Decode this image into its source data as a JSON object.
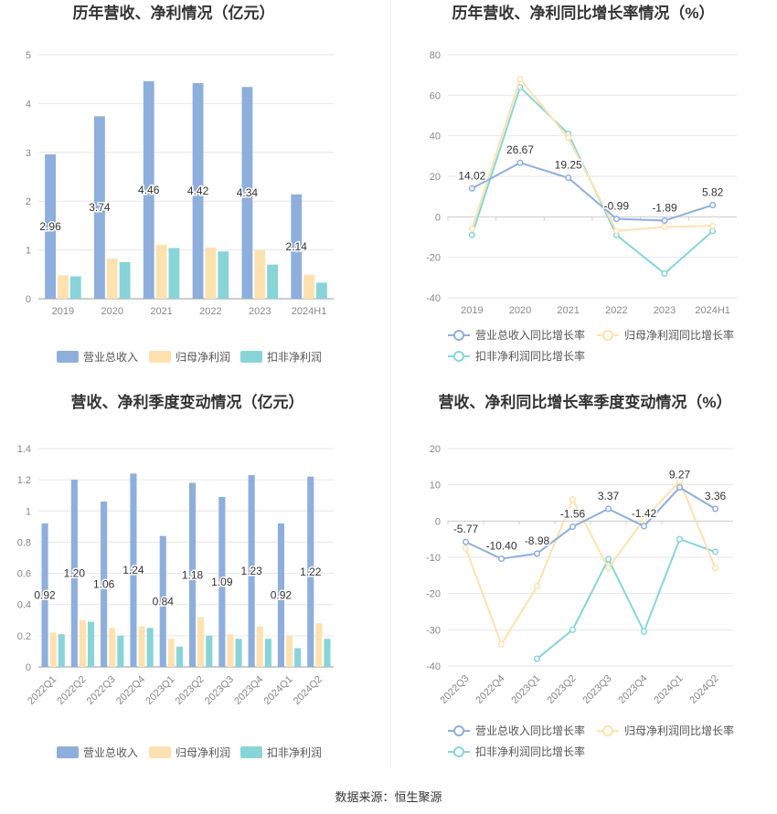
{
  "source_text": "数据来源：恒生聚源",
  "colors": {
    "revenue": "#8eaedc",
    "net_profit": "#fde2b0",
    "deducted_profit": "#88d4d8",
    "grid": "#e6e6e6",
    "axis_text": "#888888",
    "title": "#333333"
  },
  "chart_data": [
    {
      "type": "bar",
      "title": "历年营收、净利情况（亿元）",
      "categories": [
        "2019",
        "2020",
        "2021",
        "2022",
        "2023",
        "2024H1"
      ],
      "ylim": [
        0,
        5
      ],
      "yticks": [
        "0",
        "1",
        "2",
        "3",
        "4",
        "5"
      ],
      "series": [
        {
          "name": "营业总收入",
          "values": [
            2.96,
            3.74,
            4.46,
            4.42,
            4.34,
            2.14
          ]
        },
        {
          "name": "归母净利润",
          "values": [
            0.48,
            0.82,
            1.11,
            1.05,
            0.99,
            0.49
          ]
        },
        {
          "name": "扣非净利润",
          "values": [
            0.46,
            0.75,
            1.04,
            0.97,
            0.7,
            0.33
          ]
        }
      ],
      "data_labels": [
        "2.96",
        "3.74",
        "4.46",
        "4.42",
        "4.34",
        "2.14"
      ],
      "grid": true,
      "legend_position": "bottom"
    },
    {
      "type": "line",
      "title": "历年营收、净利同比增长率情况（%）",
      "categories": [
        "2019",
        "2020",
        "2021",
        "2022",
        "2023",
        "2024H1"
      ],
      "ylim": [
        -40,
        80
      ],
      "yticks": [
        "-40",
        "-20",
        "0",
        "20",
        "40",
        "60",
        "80"
      ],
      "series": [
        {
          "name": "营业总收入同比增长率",
          "values": [
            14.02,
            26.67,
            19.25,
            -0.99,
            -1.89,
            5.82
          ]
        },
        {
          "name": "归母净利润同比增长率",
          "values": [
            -6,
            68,
            39,
            -7,
            -5,
            -4.5
          ]
        },
        {
          "name": "扣非净利润同比增长率",
          "values": [
            -9,
            64,
            41,
            -9,
            -28,
            -7
          ]
        }
      ],
      "data_labels": [
        "14.02",
        "26.67",
        "19.25",
        "-0.99",
        "-1.89",
        "5.82"
      ],
      "grid": true,
      "legend_position": "bottom"
    },
    {
      "type": "bar",
      "title": "营收、净利季度变动情况（亿元）",
      "categories": [
        "2022Q1",
        "2022Q2",
        "2022Q3",
        "2022Q4",
        "2023Q1",
        "2023Q2",
        "2023Q3",
        "2023Q4",
        "2024Q1",
        "2024Q2"
      ],
      "ylim": [
        0,
        1.4
      ],
      "yticks": [
        "0",
        "0.2",
        "0.4",
        "0.6",
        "0.8",
        "1",
        "1.2",
        "1.4"
      ],
      "series": [
        {
          "name": "营业总收入",
          "values": [
            0.92,
            1.2,
            1.06,
            1.24,
            0.84,
            1.18,
            1.09,
            1.23,
            0.92,
            1.22
          ]
        },
        {
          "name": "归母净利润",
          "values": [
            0.22,
            0.3,
            0.25,
            0.26,
            0.18,
            0.32,
            0.21,
            0.26,
            0.2,
            0.28
          ]
        },
        {
          "name": "扣非净利润",
          "values": [
            0.21,
            0.29,
            0.2,
            0.25,
            0.13,
            0.2,
            0.18,
            0.18,
            0.12,
            0.18
          ]
        }
      ],
      "data_labels": [
        "0.92",
        "1.20",
        "1.06",
        "1.24",
        "0.84",
        "1.18",
        "1.09",
        "1.23",
        "0.92",
        "1.22"
      ],
      "grid": true,
      "legend_position": "bottom"
    },
    {
      "type": "line",
      "title": "营收、净利同比增长率季度变动情况（%）",
      "categories": [
        "2022Q3",
        "2022Q4",
        "2023Q1",
        "2023Q2",
        "2023Q3",
        "2023Q4",
        "2024Q1",
        "2024Q2"
      ],
      "ylim": [
        -40,
        20
      ],
      "yticks": [
        "-40",
        "-30",
        "-20",
        "-10",
        "0",
        "10",
        "20"
      ],
      "series": [
        {
          "name": "营业总收入同比增长率",
          "values": [
            -5.77,
            -10.4,
            -8.98,
            -1.56,
            3.37,
            -1.42,
            9.27,
            3.36
          ]
        },
        {
          "name": "归母净利润同比增长率",
          "values": [
            -7.5,
            -34,
            -18,
            6,
            -13,
            0.5,
            11,
            -13
          ]
        },
        {
          "name": "扣非净利润同比增长率",
          "values": [
            null,
            null,
            -38,
            -30,
            -10.5,
            -30.5,
            -5,
            -8.5
          ]
        }
      ],
      "data_labels": [
        "-5.77",
        "-10.40",
        "-8.98",
        "-1.56",
        "3.37",
        "-1.42",
        "9.27",
        "3.36"
      ],
      "grid": true,
      "legend_position": "bottom"
    }
  ]
}
